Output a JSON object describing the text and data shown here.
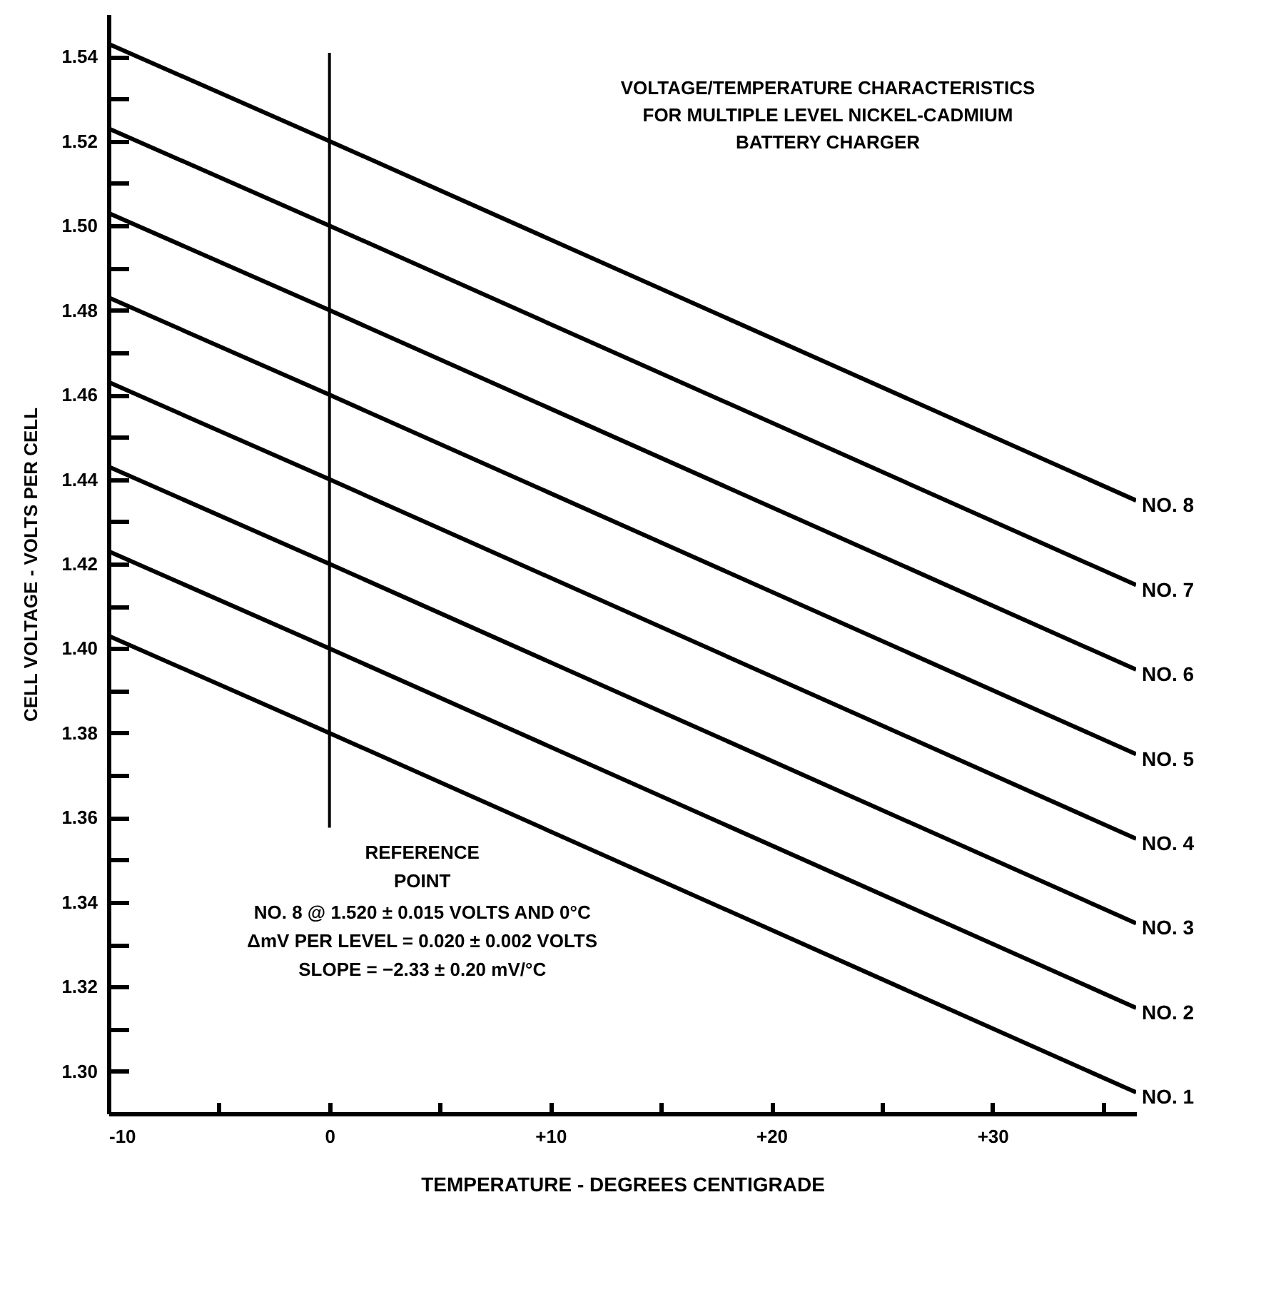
{
  "chart_data": {
    "type": "line",
    "title": "VOLTAGE/TEMPERATURE CHARACTERISTICS\nFOR MULTIPLE LEVEL NICKEL-CADMIUM\nBATTERY CHARGER",
    "xlabel": "TEMPERATURE - DEGREES CENTIGRADE",
    "ylabel": "CELL VOLTAGE - VOLTS PER CELL",
    "x": [
      -10,
      0,
      36.5
    ],
    "series": [
      {
        "name": "NO. 8",
        "color": "#000000",
        "values": [
          1.543,
          1.52,
          1.435
        ]
      },
      {
        "name": "NO. 7",
        "color": "#000000",
        "values": [
          1.523,
          1.5,
          1.415
        ]
      },
      {
        "name": "NO. 6",
        "color": "#000000",
        "values": [
          1.503,
          1.48,
          1.395
        ]
      },
      {
        "name": "NO. 5",
        "color": "#000000",
        "values": [
          1.483,
          1.46,
          1.375
        ]
      },
      {
        "name": "NO. 4",
        "color": "#000000",
        "values": [
          1.463,
          1.44,
          1.355
        ]
      },
      {
        "name": "NO. 3",
        "color": "#000000",
        "values": [
          1.443,
          1.42,
          1.335
        ]
      },
      {
        "name": "NO. 2",
        "color": "#000000",
        "values": [
          1.423,
          1.4,
          1.315
        ]
      },
      {
        "name": "NO. 1",
        "color": "#000000",
        "values": [
          1.403,
          1.38,
          1.295
        ]
      }
    ],
    "xlim": [
      -10,
      36.5
    ],
    "xticks": [
      -10,
      {
        "value": -5,
        "label": null
      },
      0,
      {
        "value": 5,
        "label": null
      },
      {
        "value": 10,
        "label": "+10"
      },
      {
        "value": 15,
        "label": null
      },
      {
        "value": 20,
        "label": "+20"
      },
      {
        "value": 25,
        "label": null
      },
      {
        "value": 30,
        "label": "+30"
      },
      {
        "value": 35,
        "label": null
      }
    ],
    "ylim": [
      1.29,
      1.55
    ],
    "yticks": [
      {
        "value": 1.3,
        "label": "1.30"
      },
      {
        "value": 1.31,
        "label": null
      },
      {
        "value": 1.32,
        "label": "1.32"
      },
      {
        "value": 1.33,
        "label": null
      },
      {
        "value": 1.34,
        "label": "1.34"
      },
      {
        "value": 1.35,
        "label": null
      },
      {
        "value": 1.36,
        "label": "1.36"
      },
      {
        "value": 1.37,
        "label": null
      },
      {
        "value": 1.38,
        "label": "1.38"
      },
      {
        "value": 1.39,
        "label": null
      },
      {
        "value": 1.4,
        "label": "1.40"
      },
      {
        "value": 1.41,
        "label": null
      },
      {
        "value": 1.42,
        "label": "1.42"
      },
      {
        "value": 1.43,
        "label": null
      },
      {
        "value": 1.44,
        "label": "1.44"
      },
      {
        "value": 1.45,
        "label": null
      },
      {
        "value": 1.46,
        "label": "1.46"
      },
      {
        "value": 1.47,
        "label": null
      },
      {
        "value": 1.48,
        "label": "1.48"
      },
      {
        "value": 1.49,
        "label": null
      },
      {
        "value": 1.5,
        "label": "1.50"
      },
      {
        "value": 1.51,
        "label": null
      },
      {
        "value": 1.52,
        "label": "1.52"
      },
      {
        "value": 1.53,
        "label": null
      },
      {
        "value": 1.54,
        "label": "1.54"
      }
    ],
    "ref_lines": [
      {
        "axis": "x",
        "value": 0,
        "label": "REFERENCE POINT"
      }
    ],
    "annotations": [
      "NO. 8 @ 1.520 ± 0.015 VOLTS AND 0°C",
      "ΔmV PER LEVEL = 0.020 ± 0.002 VOLTS",
      "SLOPE = −2.33 ± 0.20 mV/°C"
    ],
    "grid": false,
    "legend": false,
    "marker": "none",
    "line_style": "solid"
  }
}
